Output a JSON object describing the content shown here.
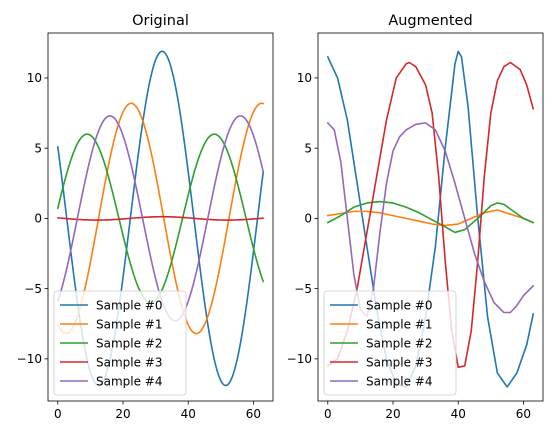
{
  "figure": {
    "background": "#ffffff"
  },
  "chart_data": [
    {
      "type": "line",
      "title": "Original",
      "xlim": [
        -3,
        66
      ],
      "ylim": [
        -13,
        13.2
      ],
      "xticks": [
        0,
        20,
        40,
        60
      ],
      "yticks": [
        -10,
        -5,
        0,
        5,
        10
      ],
      "legend": "lower-left",
      "grid": false,
      "series": [
        {
          "name": "Sample #0",
          "color": "#1f77b4",
          "kind": "sine",
          "amp": 11.9,
          "period": 39,
          "peak": 32,
          "offset": 0
        },
        {
          "name": "Sample #1",
          "color": "#ff7f0e",
          "kind": "sine",
          "amp": 8.2,
          "period": 40,
          "peak": 22.5,
          "offset": 0
        },
        {
          "name": "Sample #2",
          "color": "#2ca02c",
          "kind": "sine",
          "amp": 6.0,
          "period": 39,
          "peak": 9,
          "offset": 0
        },
        {
          "name": "Sample #3",
          "color": "#d62728",
          "kind": "sine",
          "amp": 0.12,
          "period": 40,
          "peak": 32,
          "offset": 0
        },
        {
          "name": "Sample #4",
          "color": "#9467bd",
          "kind": "sine",
          "amp": 7.3,
          "period": 40,
          "peak": 16,
          "offset": 0
        }
      ]
    },
    {
      "type": "line",
      "title": "Augmented",
      "xlim": [
        -3,
        66
      ],
      "ylim": [
        -13,
        13.2
      ],
      "xticks": [
        0,
        20,
        40,
        60
      ],
      "yticks": [
        -10,
        -5,
        0,
        5,
        10
      ],
      "legend": "lower-left",
      "grid": false,
      "series": [
        {
          "name": "Sample #0",
          "color": "#1f77b4",
          "kind": "points",
          "x": [
            0,
            3,
            6,
            9,
            12,
            15,
            18,
            21,
            24,
            27,
            30,
            33,
            36,
            39,
            40,
            41,
            43,
            46,
            49,
            52,
            55,
            58,
            61,
            63
          ],
          "y": [
            11.5,
            10.0,
            7.0,
            2.5,
            -2.0,
            -6.5,
            -10.0,
            -11.8,
            -12.0,
            -10.5,
            -7.0,
            -2.0,
            5.0,
            11.0,
            11.9,
            11.5,
            8.0,
            0.0,
            -7.0,
            -11.0,
            -12.0,
            -11.0,
            -9.0,
            -6.8
          ]
        },
        {
          "name": "Sample #1",
          "color": "#ff7f0e",
          "kind": "points",
          "x": [
            0,
            4,
            8,
            12,
            16,
            20,
            24,
            28,
            32,
            36,
            40,
            44,
            48,
            52,
            56,
            60,
            63
          ],
          "y": [
            0.2,
            0.35,
            0.5,
            0.5,
            0.4,
            0.2,
            0.0,
            -0.2,
            -0.4,
            -0.5,
            -0.4,
            0.0,
            0.4,
            0.6,
            0.3,
            0.0,
            -0.3
          ]
        },
        {
          "name": "Sample #2",
          "color": "#2ca02c",
          "kind": "points",
          "x": [
            0,
            4,
            8,
            12,
            16,
            20,
            24,
            28,
            32,
            36,
            39,
            42,
            46,
            50,
            52,
            54,
            57,
            60,
            63
          ],
          "y": [
            -0.3,
            0.2,
            0.8,
            1.1,
            1.2,
            1.1,
            0.8,
            0.4,
            -0.1,
            -0.6,
            -1.0,
            -0.8,
            0.0,
            0.9,
            1.1,
            1.0,
            0.5,
            0.0,
            -0.3
          ]
        },
        {
          "name": "Sample #3",
          "color": "#d62728",
          "kind": "points",
          "x": [
            0,
            3,
            6,
            9,
            12,
            15,
            18,
            21,
            24,
            25,
            27,
            30,
            32,
            34,
            36,
            38,
            40,
            42,
            44,
            46,
            48,
            50,
            52,
            54,
            56,
            59,
            61,
            63
          ],
          "y": [
            -10.5,
            -10.0,
            -8.0,
            -5.0,
            -1.0,
            3.0,
            7.0,
            10.0,
            11.0,
            11.1,
            10.8,
            9.5,
            7.5,
            3.0,
            -3.0,
            -8.0,
            -10.6,
            -10.5,
            -8.0,
            -3.0,
            3.0,
            7.5,
            9.8,
            10.8,
            11.1,
            10.6,
            9.5,
            7.8
          ]
        },
        {
          "name": "Sample #4",
          "color": "#9467bd",
          "kind": "points",
          "x": [
            0,
            2,
            4,
            6,
            8,
            10,
            12,
            14,
            16,
            18,
            20,
            22,
            24,
            27,
            30,
            33,
            36,
            39,
            42,
            45,
            48,
            51,
            54,
            56,
            58,
            60,
            63
          ],
          "y": [
            6.8,
            6.3,
            4.0,
            0.0,
            -4.0,
            -6.5,
            -7.0,
            -5.0,
            -1.0,
            2.5,
            4.8,
            5.8,
            6.3,
            6.7,
            6.8,
            6.3,
            4.8,
            2.5,
            0.0,
            -2.5,
            -4.5,
            -6.0,
            -6.7,
            -6.7,
            -6.2,
            -5.5,
            -4.8
          ]
        }
      ]
    }
  ]
}
